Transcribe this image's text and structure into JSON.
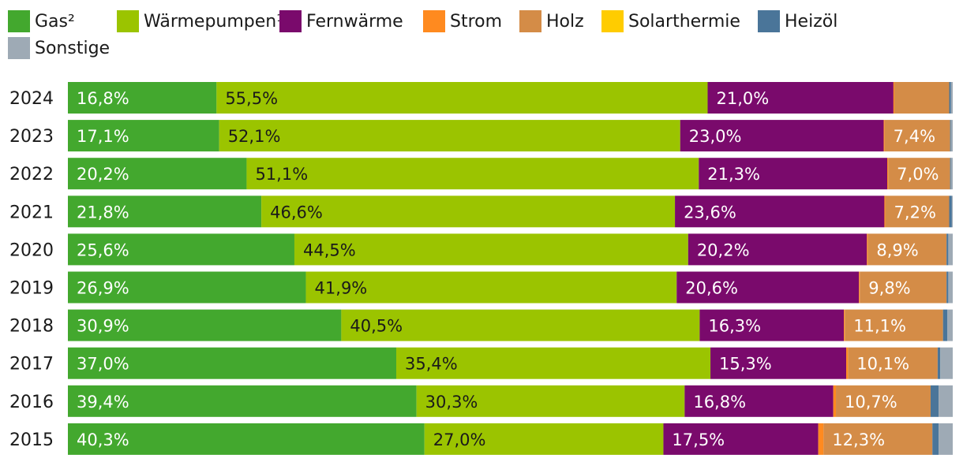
{
  "chart_data": {
    "type": "bar",
    "orientation": "horizontal",
    "stacked": true,
    "unit": "%",
    "legend_position": "top",
    "categories": [
      "2024",
      "2023",
      "2022",
      "2021",
      "2020",
      "2019",
      "2018",
      "2017",
      "2016",
      "2015"
    ],
    "series": [
      {
        "name": "Gas",
        "superscript": "2",
        "color": "#43a82e",
        "values": [
          16.8,
          17.1,
          20.2,
          21.8,
          25.6,
          26.9,
          30.9,
          37.0,
          39.4,
          40.3
        ],
        "labels": [
          "16,8%",
          "17,1%",
          "20,2%",
          "21,8%",
          "25,6%",
          "26,9%",
          "30,9%",
          "37,0%",
          "39,4%",
          "40,3%"
        ],
        "label_color": "#ffffff"
      },
      {
        "name": "Wärmepumpen",
        "superscript": "1",
        "color": "#9bc400",
        "values": [
          55.5,
          52.1,
          51.1,
          46.6,
          44.5,
          41.9,
          40.5,
          35.4,
          30.3,
          27.0
        ],
        "labels": [
          "55,5%",
          "52,1%",
          "51,1%",
          "46,6%",
          "44,5%",
          "41,9%",
          "40,5%",
          "35,4%",
          "30,3%",
          "27,0%"
        ],
        "label_color": "#1a1a1a"
      },
      {
        "name": "Fernwärme",
        "superscript": "",
        "color": "#7a0a6c",
        "values": [
          21.0,
          23.0,
          21.3,
          23.6,
          20.2,
          20.6,
          16.3,
          15.3,
          16.8,
          17.5
        ],
        "labels": [
          "21,0%",
          "23,0%",
          "21,3%",
          "23,6%",
          "20,2%",
          "20,6%",
          "16,3%",
          "15,3%",
          "16,8%",
          "17,5%"
        ],
        "label_color": "#ffffff"
      },
      {
        "name": "Strom",
        "superscript": "",
        "color": "#ff8a1f",
        "values": [
          0.1,
          0.1,
          0.1,
          0.1,
          0.1,
          0.1,
          0.1,
          0.2,
          0.3,
          0.6
        ],
        "labels": [
          "",
          "",
          "",
          "",
          "",
          "",
          "",
          "",
          "",
          ""
        ],
        "label_color": "#1a1a1a"
      },
      {
        "name": "Holz",
        "superscript": "",
        "color": "#d48c47",
        "values": [
          6.2,
          7.4,
          7.0,
          7.2,
          8.9,
          9.8,
          11.1,
          10.1,
          10.7,
          12.3
        ],
        "labels": [
          "",
          "7,4%",
          "7,0%",
          "7,2%",
          "8,9%",
          "9,8%",
          "11,1%",
          "10,1%",
          "10,7%",
          "12,3%"
        ],
        "label_color": "#ffffff"
      },
      {
        "name": "Solarthermie",
        "superscript": "",
        "color": "#ffcc00",
        "values": [
          0,
          0,
          0,
          0,
          0,
          0,
          0,
          0,
          0,
          0
        ],
        "labels": [
          "",
          "",
          "",
          "",
          "",
          "",
          "",
          "",
          "",
          ""
        ],
        "label_color": "#1a1a1a"
      },
      {
        "name": "Heizöl",
        "superscript": "",
        "color": "#4a7599",
        "values": [
          0.2,
          0.1,
          0.1,
          0.3,
          0.2,
          0.2,
          0.5,
          0.3,
          0.9,
          0.7
        ],
        "labels": [
          "",
          "",
          "",
          "",
          "",
          "",
          "",
          "",
          "",
          ""
        ],
        "label_color": "#ffffff"
      },
      {
        "name": "Sonstige",
        "superscript": "",
        "color": "#9eaab5",
        "values": [
          0.2,
          0.2,
          0.2,
          0.1,
          0.5,
          0.5,
          0.6,
          1.4,
          1.6,
          1.6
        ],
        "labels": [
          "",
          "",
          "",
          "",
          "",
          "",
          "",
          "",
          "",
          ""
        ],
        "label_color": "#1a1a1a"
      }
    ]
  }
}
